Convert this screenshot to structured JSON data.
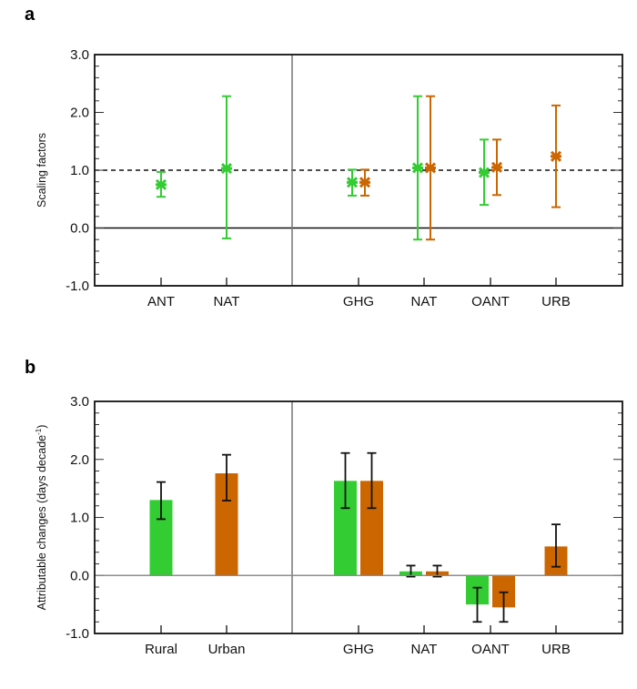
{
  "colors": {
    "rural": "#33cc33",
    "urban": "#cc6600",
    "axis": "#111111",
    "divider": "#777777"
  },
  "chart_data": [
    {
      "panel": "a",
      "type": "scatter",
      "title": "",
      "xlabel": "",
      "ylabel": "Scaling factors",
      "ylim": [
        -1.0,
        3.0
      ],
      "yticks": [
        "-1.0",
        "0.0",
        "1.0",
        "2.0",
        "3.0"
      ],
      "reference_line": 1.0,
      "categories": [
        "ANT",
        "NAT",
        "",
        "GHG",
        "NAT",
        "OANT",
        "URB"
      ],
      "legend": "none",
      "series": [
        {
          "name": "Rural",
          "color": "#33cc33",
          "points": [
            {
              "category": "ANT",
              "value": 0.75,
              "low": 0.54,
              "high": 0.97
            },
            {
              "category": "NAT",
              "value": 1.03,
              "low": -0.18,
              "high": 2.28
            },
            {
              "category": "GHG",
              "value": 0.79,
              "low": 0.56,
              "high": 1.01
            },
            {
              "category": "NAT",
              "value": 1.04,
              "low": -0.2,
              "high": 2.28
            },
            {
              "category": "OANT",
              "value": 0.96,
              "low": 0.4,
              "high": 1.53
            }
          ]
        },
        {
          "name": "Urban",
          "color": "#cc6600",
          "points": [
            {
              "category": "GHG",
              "value": 0.79,
              "low": 0.56,
              "high": 1.01
            },
            {
              "category": "NAT",
              "value": 1.04,
              "low": -0.2,
              "high": 2.28
            },
            {
              "category": "OANT",
              "value": 1.05,
              "low": 0.57,
              "high": 1.53
            },
            {
              "category": "URB",
              "value": 1.24,
              "low": 0.36,
              "high": 2.12
            }
          ]
        }
      ]
    },
    {
      "panel": "b",
      "type": "bar",
      "title": "",
      "xlabel": "",
      "ylabel": "Attributable changes (days decade",
      "ylabel_sup": "-1",
      "ylabel_close": ")",
      "ylim": [
        -1.0,
        3.0
      ],
      "yticks": [
        "-1.0",
        "0.0",
        "1.0",
        "2.0",
        "3.0"
      ],
      "categories": [
        "Rural",
        "Urban",
        "",
        "GHG",
        "NAT",
        "OANT",
        "URB"
      ],
      "legend": "none",
      "series": [
        {
          "name": "Rural",
          "color": "#33cc33",
          "bars": [
            {
              "category": "Rural",
              "value": 1.3,
              "low": 0.97,
              "high": 1.61
            },
            {
              "category": "GHG",
              "value": 1.63,
              "low": 1.16,
              "high": 2.11
            },
            {
              "category": "NAT",
              "value": 0.07,
              "low": -0.02,
              "high": 0.17
            },
            {
              "category": "OANT",
              "value": -0.5,
              "low": -0.8,
              "high": -0.21
            }
          ]
        },
        {
          "name": "Urban",
          "color": "#cc6600",
          "bars": [
            {
              "category": "Urban",
              "value": 1.76,
              "low": 1.29,
              "high": 2.08
            },
            {
              "category": "GHG",
              "value": 1.63,
              "low": 1.16,
              "high": 2.11
            },
            {
              "category": "NAT",
              "value": 0.07,
              "low": -0.02,
              "high": 0.17
            },
            {
              "category": "OANT",
              "value": -0.55,
              "low": -0.8,
              "high": -0.29
            },
            {
              "category": "URB",
              "value": 0.5,
              "low": 0.15,
              "high": 0.88
            }
          ]
        }
      ]
    }
  ],
  "panels": [
    {
      "letter": "a"
    },
    {
      "letter": "b"
    }
  ]
}
